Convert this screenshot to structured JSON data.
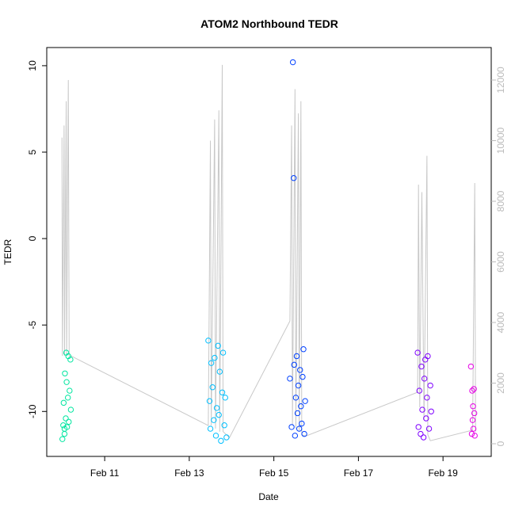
{
  "chart_data": {
    "type": "scatter",
    "title": "ATOM2 Northbound TEDR",
    "xlabel": "Date",
    "ylabel": "TEDR",
    "xlim": [
      9.63,
      20.14
    ],
    "ylim": [
      -12.6,
      11.05
    ],
    "y2lim": [
      -418,
      13072
    ],
    "xticks": [
      {
        "value": 11,
        "label": "Feb 11"
      },
      {
        "value": 13,
        "label": "Feb 13"
      },
      {
        "value": 15,
        "label": "Feb 15"
      },
      {
        "value": 17,
        "label": "Feb 17"
      },
      {
        "value": 19,
        "label": "Feb 19"
      }
    ],
    "yticks": [
      10,
      5,
      0,
      -5,
      -10
    ],
    "y2ticks": [
      0,
      2000,
      4000,
      6000,
      8000,
      10000,
      12000
    ],
    "series": [
      {
        "color": "#00e6a0",
        "x": [
          10.0,
          10.02,
          10.03,
          10.05,
          10.06,
          10.08,
          10.09,
          10.1,
          10.11,
          10.13,
          10.14,
          10.15,
          10.17,
          10.19,
          10.2,
          10.05
        ],
        "values": [
          -11.6,
          -10.8,
          -9.5,
          -11.0,
          -7.8,
          -10.4,
          -6.6,
          -8.3,
          -10.9,
          -9.2,
          -6.8,
          -10.6,
          -8.8,
          -7.0,
          -9.9,
          -11.3
        ]
      },
      {
        "color": "#00bfff",
        "x": [
          13.45,
          13.48,
          13.5,
          13.52,
          13.55,
          13.58,
          13.6,
          13.63,
          13.65,
          13.68,
          13.7,
          13.72,
          13.75,
          13.78,
          13.8,
          13.83,
          13.85,
          13.88
        ],
        "values": [
          -5.9,
          -9.4,
          -11.0,
          -7.2,
          -8.6,
          -10.5,
          -6.9,
          -11.4,
          -9.8,
          -6.2,
          -10.2,
          -7.7,
          -11.7,
          -8.9,
          -6.6,
          -10.8,
          -9.2,
          -11.5
        ]
      },
      {
        "color": "#0040ff",
        "x": [
          15.38,
          15.42,
          15.45,
          15.47,
          15.48,
          15.5,
          15.52,
          15.54,
          15.56,
          15.58,
          15.6,
          15.62,
          15.64,
          15.66,
          15.68,
          15.7,
          15.72,
          15.74
        ],
        "values": [
          -8.1,
          -10.9,
          10.2,
          3.5,
          -7.3,
          -11.4,
          -9.2,
          -6.8,
          -10.1,
          -8.5,
          -11.0,
          -7.6,
          -9.7,
          -10.7,
          -8.0,
          -6.4,
          -11.3,
          -9.4
        ]
      },
      {
        "color": "#7f00ff",
        "x": [
          18.4,
          18.42,
          18.44,
          18.47,
          18.49,
          18.51,
          18.54,
          18.56,
          18.58,
          18.6,
          18.62,
          18.64,
          18.67,
          18.7,
          18.72
        ],
        "values": [
          -6.6,
          -10.9,
          -8.8,
          -11.3,
          -7.4,
          -9.9,
          -11.5,
          -8.1,
          -7.0,
          -10.4,
          -9.2,
          -6.8,
          -11.0,
          -8.5,
          -10.0
        ]
      },
      {
        "color": "#e600e6",
        "x": [
          19.66,
          19.68,
          19.69,
          19.7,
          19.71,
          19.72,
          19.73,
          19.74,
          19.75
        ],
        "values": [
          -7.4,
          -11.3,
          -8.8,
          -10.5,
          -9.7,
          -11.0,
          -8.7,
          -10.1,
          -11.4
        ]
      },
      {
        "type": "line",
        "axis": "y2",
        "color": "#c8c8c8",
        "x": [
          9.99,
          10.0,
          10.04,
          10.05,
          10.09,
          10.1,
          10.14,
          10.16,
          10.2,
          13.45,
          13.5,
          13.52,
          13.6,
          13.62,
          13.7,
          13.72,
          13.78,
          13.8,
          13.95,
          15.38,
          15.42,
          15.44,
          15.5,
          15.52,
          15.58,
          15.6,
          15.64,
          15.66,
          15.75,
          18.4,
          18.42,
          18.45,
          18.5,
          18.55,
          18.62,
          18.64,
          18.7,
          19.7,
          19.75,
          19.77
        ],
        "values": [
          10100,
          2900,
          10500,
          2900,
          11300,
          2900,
          12000,
          2900,
          2900,
          600,
          10000,
          600,
          10700,
          500,
          11000,
          400,
          12500,
          400,
          200,
          4050,
          10500,
          600,
          11700,
          500,
          10900,
          400,
          11300,
          300,
          250,
          1700,
          8550,
          1200,
          8300,
          800,
          9500,
          300,
          100,
          450,
          8600,
          400
        ]
      }
    ]
  }
}
